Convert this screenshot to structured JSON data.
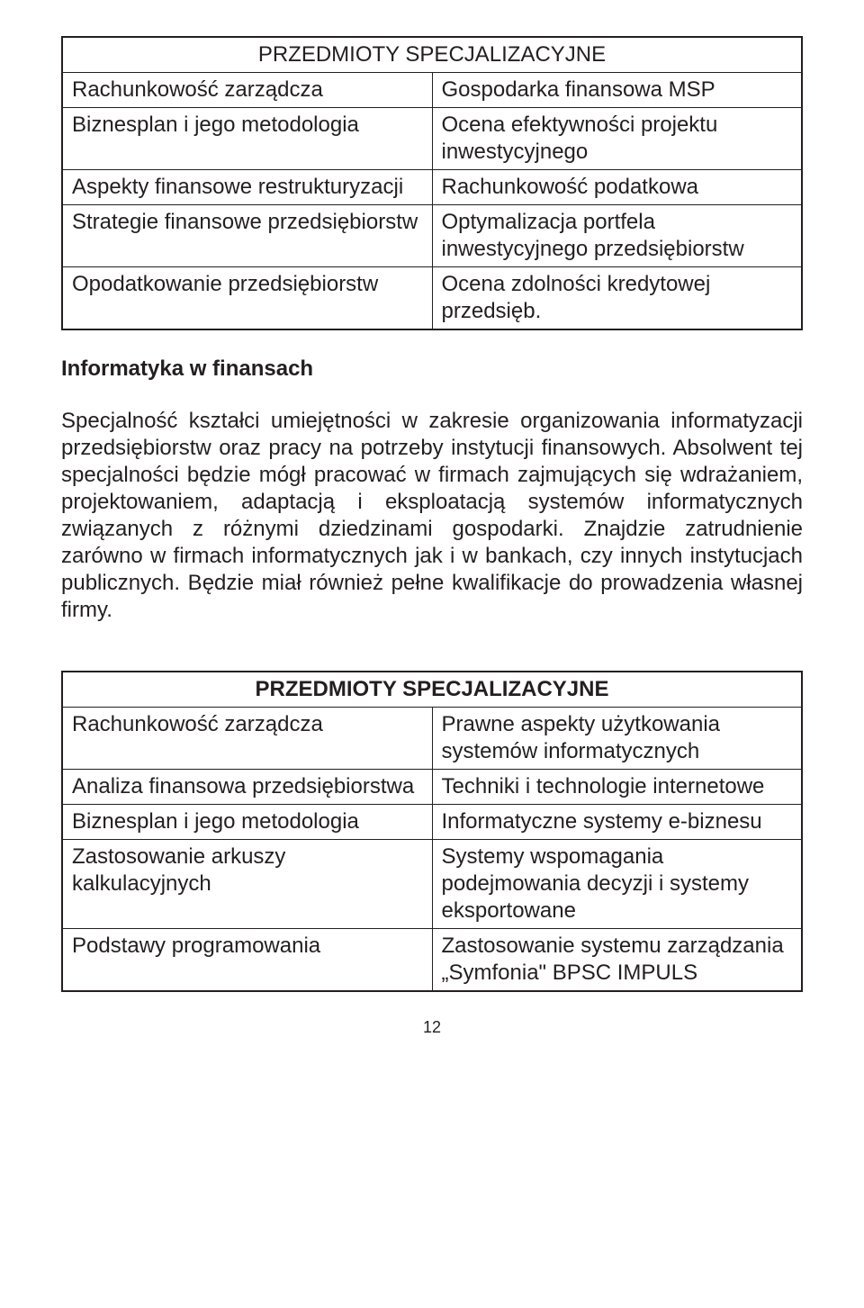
{
  "table1": {
    "header": "PRZEDMIOTY SPECJALIZACYJNE",
    "rows": [
      [
        "Rachunkowość zarządcza",
        "Gospodarka finansowa MSP"
      ],
      [
        "Biznesplan i jego metodologia",
        "Ocena efektywności projektu inwestycyjnego"
      ],
      [
        "Aspekty finansowe restrukturyzacji",
        "Rachunkowość podatkowa"
      ],
      [
        "Strategie finansowe przedsiębiorstw",
        "Optymalizacja portfela inwestycyjnego przedsiębiorstw"
      ],
      [
        "Opodatkowanie przedsiębiorstw",
        "Ocena zdolności kredytowej przedsięb."
      ]
    ]
  },
  "heading": "Informatyka w finansach",
  "paragraph": "Specjalność kształci umiejętności w zakresie organizowania informatyzacji przedsiębiorstw oraz pracy na potrzeby instytucji finansowych. Absolwent tej specjalności będzie mógł pracować w firmach zajmujących się wdrażaniem, projektowaniem, adaptacją i eksploatacją systemów informatycznych związanych z różnymi dziedzinami gospodarki. Znajdzie zatrudnienie zarówno w firmach informatycznych jak i w bankach, czy innych instytucjach publicznych. Będzie miał również pełne kwalifikacje do prowadzenia własnej firmy.",
  "table2": {
    "header": "PRZEDMIOTY SPECJALIZACYJNE",
    "rows": [
      [
        "Rachunkowość zarządcza",
        "Prawne aspekty użytkowania systemów informatycznych"
      ],
      [
        "Analiza finansowa przedsiębiorstwa",
        "Techniki i technologie internetowe"
      ],
      [
        "Biznesplan i jego metodologia",
        "Informatyczne systemy e-biznesu"
      ],
      [
        "Zastosowanie arkuszy kalkulacyjnych",
        "Systemy wspomagania podejmowania decyzji i systemy eksportowane"
      ],
      [
        "Podstawy programowania",
        "Zastosowanie systemu zarządzania „Symfonia\" BPSC IMPULS"
      ]
    ]
  },
  "page_number": "12",
  "colors": {
    "text": "#231f20",
    "border": "#231f20",
    "background": "#ffffff"
  }
}
